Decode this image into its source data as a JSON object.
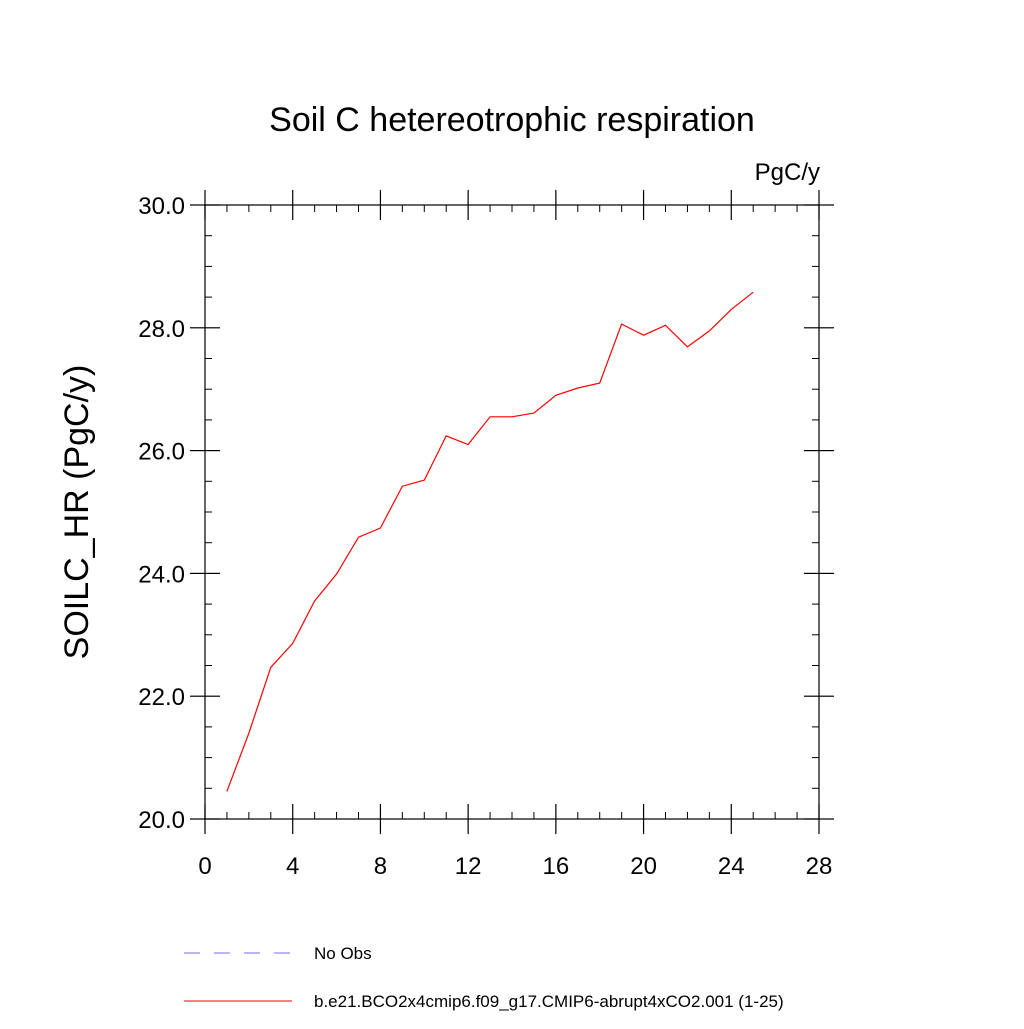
{
  "chart_data": {
    "type": "line",
    "title": "Soil C hetereotrophic respiration",
    "units_label": "PgC/y",
    "xlabel": "",
    "ylabel": "SOILC_HR  (PgC/y)",
    "xlim": [
      0,
      28
    ],
    "ylim": [
      20,
      30
    ],
    "x_ticks": [
      {
        "value": 0,
        "label": "0"
      },
      {
        "value": 4,
        "label": "4"
      },
      {
        "value": 8,
        "label": "8"
      },
      {
        "value": 12,
        "label": "12"
      },
      {
        "value": 16,
        "label": "16"
      },
      {
        "value": 20,
        "label": "20"
      },
      {
        "value": 24,
        "label": "24"
      },
      {
        "value": 28,
        "label": "28"
      }
    ],
    "y_ticks": [
      {
        "value": 20,
        "label": "20.0"
      },
      {
        "value": 22,
        "label": "22.0"
      },
      {
        "value": 24,
        "label": "24.0"
      },
      {
        "value": 26,
        "label": "26.0"
      },
      {
        "value": 28,
        "label": "28.0"
      },
      {
        "value": 30,
        "label": "30.0"
      }
    ],
    "x_minor_step": 1,
    "y_minor_step": 0.5,
    "grid": false,
    "legend_position": "bottom",
    "series": [
      {
        "name": "No Obs",
        "color": "#7b68ee",
        "dash": "dashed",
        "x": [],
        "values": []
      },
      {
        "name": "b.e21.BCO2x4cmip6.f09_g17.CMIP6-abrupt4xCO2.001 (1-25)",
        "color": "#ff0000",
        "dash": "solid",
        "x": [
          1,
          2,
          3,
          4,
          5,
          6,
          7,
          8,
          9,
          10,
          11,
          12,
          13,
          14,
          15,
          16,
          17,
          18,
          19,
          20,
          21,
          22,
          23,
          24,
          25
        ],
        "values": [
          20.45,
          21.4,
          22.47,
          22.86,
          23.55,
          23.99,
          24.59,
          24.74,
          25.42,
          25.52,
          26.24,
          26.1,
          26.55,
          26.55,
          26.61,
          26.9,
          27.02,
          27.1,
          28.06,
          27.88,
          28.04,
          27.69,
          27.95,
          28.3,
          28.58
        ]
      }
    ]
  }
}
